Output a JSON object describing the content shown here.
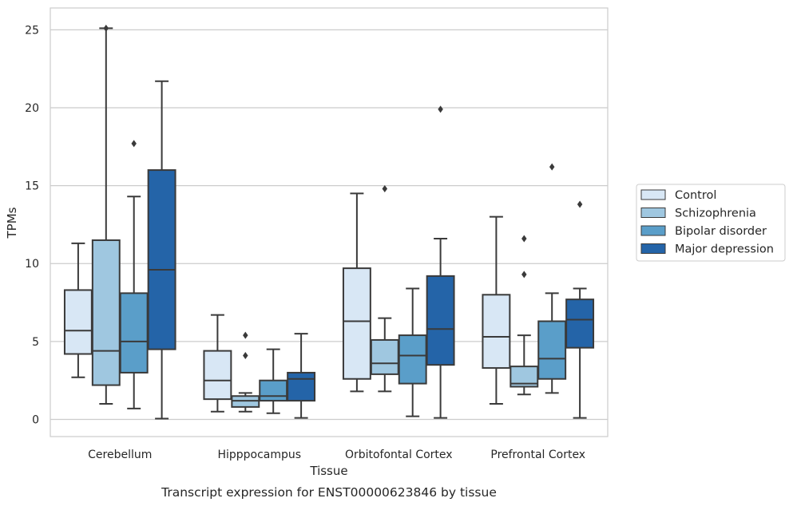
{
  "chart_data": {
    "type": "box",
    "title": "Transcript expression for ENST00000623846 by tissue",
    "xlabel": "Tissue",
    "ylabel": "TPMs",
    "ylim": [
      -1.1,
      26.4
    ],
    "yticks": [
      0,
      5,
      10,
      15,
      20,
      25
    ],
    "ytick_labels": [
      "0",
      "5",
      "10",
      "15",
      "20",
      "25"
    ],
    "grid": "horizontal",
    "legend_position": "right",
    "categories": [
      "Cerebellum",
      "Hipppocampus",
      "Orbitofontal Cortex",
      "Prefrontal Cortex"
    ],
    "series": [
      {
        "name": "Control",
        "color": "#d8e7f5",
        "boxes": [
          {
            "whisker_low": 2.7,
            "q1": 4.2,
            "median": 5.7,
            "q3": 8.3,
            "whisker_high": 11.3,
            "outliers": []
          },
          {
            "whisker_low": 0.5,
            "q1": 1.3,
            "median": 2.5,
            "q3": 4.4,
            "whisker_high": 6.7,
            "outliers": []
          },
          {
            "whisker_low": 1.8,
            "q1": 2.6,
            "median": 6.3,
            "q3": 9.7,
            "whisker_high": 14.5,
            "outliers": []
          },
          {
            "whisker_low": 1.0,
            "q1": 3.3,
            "median": 5.3,
            "q3": 8.0,
            "whisker_high": 13.0,
            "outliers": []
          }
        ]
      },
      {
        "name": "Schizophrenia",
        "color": "#9fc7e0",
        "boxes": [
          {
            "whisker_low": 1.0,
            "q1": 2.2,
            "median": 4.4,
            "q3": 11.5,
            "whisker_high": 25.1,
            "outliers": [
              25.1
            ]
          },
          {
            "whisker_low": 0.5,
            "q1": 0.8,
            "median": 1.2,
            "q3": 1.5,
            "whisker_high": 1.7,
            "outliers": [
              4.1,
              5.4
            ]
          },
          {
            "whisker_low": 1.8,
            "q1": 2.9,
            "median": 3.6,
            "q3": 5.1,
            "whisker_high": 6.5,
            "outliers": [
              14.8
            ]
          },
          {
            "whisker_low": 1.6,
            "q1": 2.1,
            "median": 2.3,
            "q3": 3.4,
            "whisker_high": 5.4,
            "outliers": [
              9.3,
              11.6
            ]
          }
        ]
      },
      {
        "name": "Bipolar disorder",
        "color": "#5a9ec9",
        "boxes": [
          {
            "whisker_low": 0.7,
            "q1": 3.0,
            "median": 5.0,
            "q3": 8.1,
            "whisker_high": 14.3,
            "outliers": [
              17.7
            ]
          },
          {
            "whisker_low": 0.4,
            "q1": 1.2,
            "median": 1.5,
            "q3": 2.5,
            "whisker_high": 4.5,
            "outliers": []
          },
          {
            "whisker_low": 0.2,
            "q1": 2.3,
            "median": 4.1,
            "q3": 5.4,
            "whisker_high": 8.4,
            "outliers": []
          },
          {
            "whisker_low": 1.7,
            "q1": 2.6,
            "median": 3.9,
            "q3": 6.3,
            "whisker_high": 8.1,
            "outliers": [
              16.2
            ]
          }
        ]
      },
      {
        "name": "Major depression",
        "color": "#2464a8",
        "boxes": [
          {
            "whisker_low": 0.05,
            "q1": 4.5,
            "median": 9.6,
            "q3": 16.0,
            "whisker_high": 21.7,
            "outliers": []
          },
          {
            "whisker_low": 0.1,
            "q1": 1.2,
            "median": 2.6,
            "q3": 3.0,
            "whisker_high": 5.5,
            "outliers": []
          },
          {
            "whisker_low": 0.1,
            "q1": 3.5,
            "median": 5.8,
            "q3": 9.2,
            "whisker_high": 11.6,
            "outliers": [
              19.9
            ]
          },
          {
            "whisker_low": 0.1,
            "q1": 4.6,
            "median": 6.4,
            "q3": 7.7,
            "whisker_high": 8.4,
            "outliers": [
              13.8
            ]
          }
        ]
      }
    ]
  }
}
